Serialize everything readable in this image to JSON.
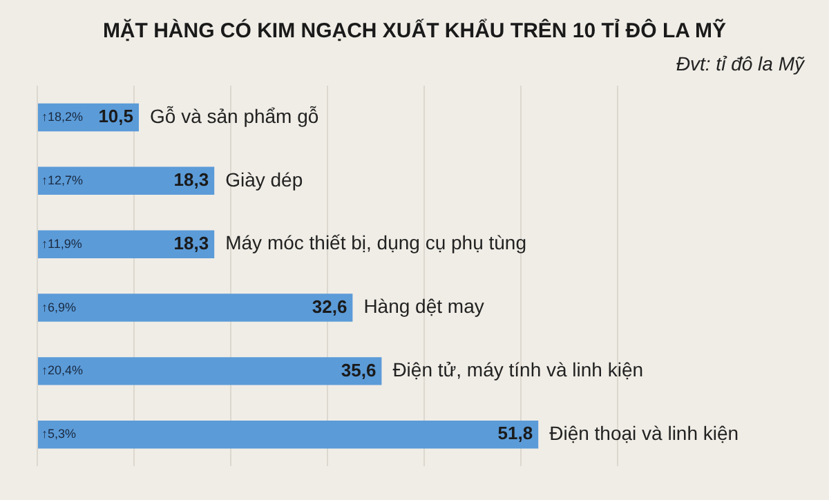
{
  "chart_data": {
    "type": "bar",
    "orientation": "horizontal",
    "title": "MẶT HÀNG CÓ KIM NGẠCH XUẤT KHẨU TRÊN 10 TỈ ĐÔ LA MỸ",
    "subtitle": "Đvt: tỉ đô la Mỹ",
    "categories": [
      "Gỗ và sản phẩm gỗ",
      "Giày dép",
      "Máy móc thiết bị, dụng cụ phụ tùng",
      "Hàng dệt may",
      "Điện tử, máy tính và linh kiện",
      "Điện thoại và linh kiện"
    ],
    "values": [
      10.5,
      18.3,
      18.3,
      32.6,
      35.6,
      51.8
    ],
    "value_labels": [
      "10,5",
      "18,3",
      "18,3",
      "32,6",
      "35,6",
      "51,8"
    ],
    "color": "#5b9bd8",
    "xlim": [
      0,
      60
    ],
    "xticks": [
      {
        "value": 0,
        "label": null
      },
      {
        "value": 10,
        "label": null
      },
      {
        "value": 20,
        "label": null
      },
      {
        "value": 30,
        "label": null
      },
      {
        "value": 40,
        "label": null
      },
      {
        "value": 50,
        "label": null
      },
      {
        "value": 60,
        "label": null
      }
    ],
    "grid": "x",
    "legend": false,
    "annotations": [
      "↑18,2%",
      "↑12,7%",
      "↑11,9%",
      "↑6,9%",
      "↑20,4%",
      "↑5,3%"
    ]
  }
}
